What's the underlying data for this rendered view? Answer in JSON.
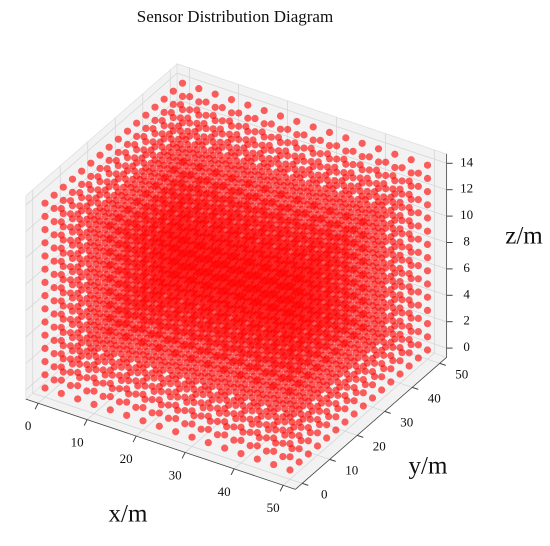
{
  "chart_data": {
    "type": "scatter3d",
    "title": "Sensor Distribution Diagram",
    "x_label": "x/m",
    "y_label": "y/m",
    "z_label": "z/m",
    "x": [
      0,
      3.33,
      6.67,
      10,
      13.33,
      16.67,
      20,
      23.33,
      26.67,
      30,
      33.33,
      36.67,
      40,
      43.33,
      46.67,
      50
    ],
    "y": [
      0,
      3.33,
      6.67,
      10,
      13.33,
      16.67,
      20,
      23.33,
      26.67,
      30,
      33.33,
      36.67,
      40,
      43.33,
      46.67,
      50
    ],
    "z": [
      0,
      1,
      2,
      3,
      4,
      5,
      6,
      7,
      8,
      9,
      10,
      11,
      12,
      13,
      14
    ],
    "color": "#ff0000",
    "xlim": [
      -2.5,
      52.5
    ],
    "ylim": [
      -2.5,
      52.5
    ],
    "zlim": [
      -0.7,
      14.7
    ],
    "xticks": [
      0,
      10,
      20,
      30,
      40,
      50
    ],
    "yticks": [
      0,
      10,
      20,
      30,
      40,
      50
    ],
    "zticks": [
      0,
      2,
      4,
      6,
      8,
      10,
      12,
      14
    ],
    "grid": true
  }
}
